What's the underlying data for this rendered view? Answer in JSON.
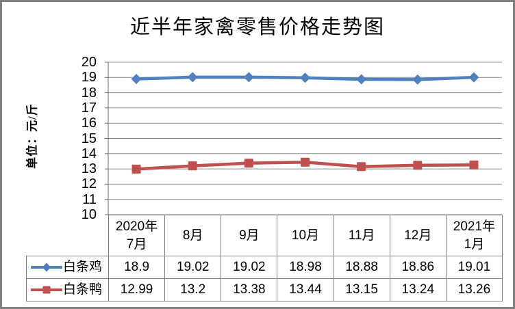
{
  "title": "近半年家禽零售价格走势图",
  "y_axis_title": "单位：元/斤",
  "colors": {
    "series_chicken": "#4f81bd",
    "series_duck": "#c0504d",
    "gridline": "#8c8c8c",
    "axis": "#6e6e6e",
    "table_border": "#808080",
    "frame_border": "#7f7f7f",
    "background": "#ffffff"
  },
  "chart_data": {
    "type": "line",
    "title": "近半年家禽零售价格走势图",
    "ylabel": "单位：元/斤",
    "xlabel": "",
    "categories": [
      "2020年\n7月",
      "8月",
      "9月",
      "10月",
      "11月",
      "12月",
      "2021年\n1月"
    ],
    "series": [
      {
        "name": "白条鸡",
        "marker": "diamond",
        "color": "#4f81bd",
        "values": [
          18.9,
          19.02,
          19.02,
          18.98,
          18.88,
          18.86,
          19.01
        ]
      },
      {
        "name": "白条鸭",
        "marker": "square",
        "color": "#c0504d",
        "values": [
          12.99,
          13.2,
          13.38,
          13.44,
          13.15,
          13.24,
          13.26
        ]
      }
    ],
    "ylim": [
      10,
      20
    ],
    "ytick_step": 1,
    "ytick_labels": [
      "20",
      "19",
      "18",
      "17",
      "16",
      "15",
      "14",
      "13",
      "12",
      "11",
      "10"
    ],
    "grid": true,
    "legend_position": "table-left",
    "data_table_shown": true
  }
}
